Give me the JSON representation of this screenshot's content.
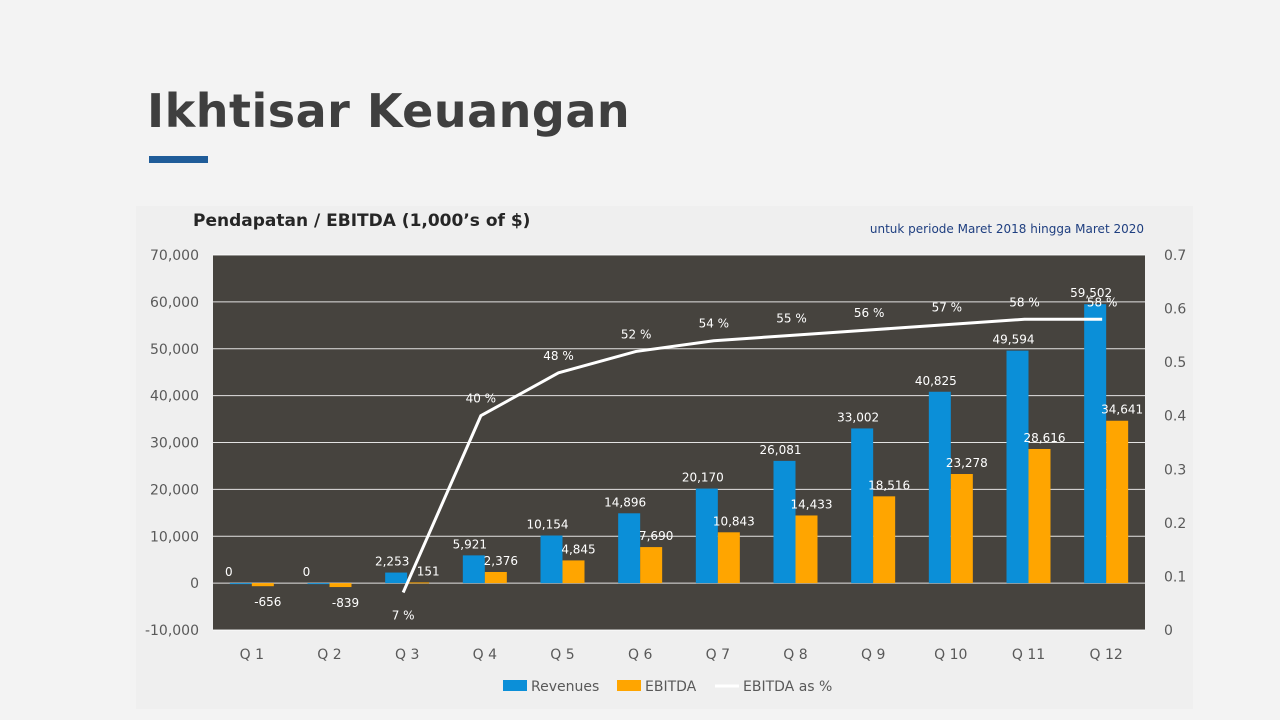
{
  "slide": {
    "title": "Ikhtisar Keuangan",
    "accent_color": "#1f5c99"
  },
  "chart_data": {
    "type": "bar",
    "title": "Pendapatan / EBITDA (1,000’s of $)",
    "subtitle": "untuk periode Maret 2018 hingga Maret 2020",
    "categories": [
      "Q 1",
      "Q 2",
      "Q 3",
      "Q 4",
      "Q 5",
      "Q 6",
      "Q 7",
      "Q 8",
      "Q 9",
      "Q 10",
      "Q 11",
      "Q 12"
    ],
    "series": [
      {
        "name": "Revenues",
        "type": "bar",
        "axis": "left",
        "color": "#0b8fd8",
        "values": [
          0,
          0,
          2253,
          5921,
          10154,
          14896,
          20170,
          26081,
          33002,
          40825,
          49594,
          59502
        ],
        "labels": [
          "0",
          "0",
          "2,253",
          "5,921",
          "10,154",
          "14,896",
          "20,170",
          "26,081",
          "33,002",
          "40,825",
          "49,594",
          "59,502"
        ]
      },
      {
        "name": "EBITDA",
        "type": "bar",
        "axis": "left",
        "color": "#ffa500",
        "values": [
          -656,
          -839,
          151,
          2376,
          4845,
          7690,
          10843,
          14433,
          18516,
          23278,
          28616,
          34641
        ],
        "labels": [
          "-656",
          "-839",
          "151",
          "2,376",
          "4,845",
          "7,690",
          "10,843",
          "14,433",
          "18,516",
          "23,278",
          "28,616",
          "34,641"
        ]
      },
      {
        "name": "EBITDA as %",
        "type": "line",
        "axis": "right",
        "color": "#ffffff",
        "values": [
          null,
          null,
          0.07,
          0.4,
          0.48,
          0.52,
          0.54,
          0.55,
          0.56,
          0.57,
          0.58,
          0.58
        ],
        "labels": [
          "",
          "",
          "7 %",
          "40 %",
          "48 %",
          "52 %",
          "54 %",
          "55 %",
          "56 %",
          "57 %",
          "58 %",
          "58 %"
        ]
      }
    ],
    "ylim": [
      -10000,
      70000
    ],
    "yticks": [
      "-10,000",
      "0",
      "10,000",
      "20,000",
      "30,000",
      "40,000",
      "50,000",
      "60,000",
      "70,000"
    ],
    "y2lim": [
      0,
      0.7
    ],
    "y2ticks": [
      "0",
      "0.1",
      "0.2",
      "0.3",
      "0.4",
      "0.5",
      "0.6",
      "0.7"
    ],
    "plot_background": "#46433e",
    "grid": true,
    "legend_position": "bottom"
  }
}
